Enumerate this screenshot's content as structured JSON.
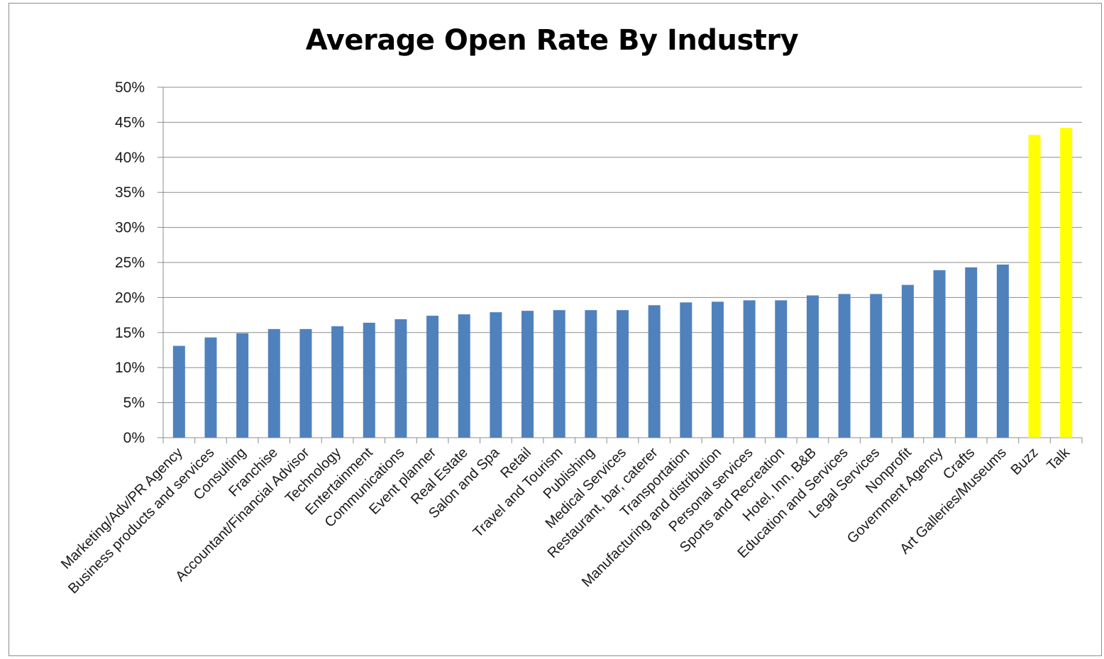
{
  "chart_data": {
    "type": "bar",
    "title": "Average Open Rate By Industry",
    "xlabel": "",
    "ylabel": "",
    "ylim": [
      0,
      50
    ],
    "y_ticks": [
      "0%",
      "5%",
      "10%",
      "15%",
      "20%",
      "25%",
      "30%",
      "35%",
      "40%",
      "45%",
      "50%"
    ],
    "grid": "horizontal",
    "categories": [
      "Marketing/Adv/PR Agency",
      "Business products and services",
      "Consulting",
      "Franchise",
      "Accountant/Financial Advisor",
      "Technology",
      "Entertainment",
      "Communications",
      "Event planner",
      "Real Estate",
      "Salon and Spa",
      "Retail",
      "Travel and Tourism",
      "Publishing",
      "Medical Services",
      "Restaurant, bar, caterer",
      "Transportation",
      "Manufacturing and distribution",
      "Personal services",
      "Sports and Recreation",
      "Hotel, Inn, B&B",
      "Education and Services",
      "Legal Services",
      "Nonprofit",
      "Government Agency",
      "Crafts",
      "Art Galleries/Museums",
      "Buzz",
      "Talk"
    ],
    "values": [
      13.1,
      14.3,
      14.9,
      15.5,
      15.5,
      15.9,
      16.4,
      16.9,
      17.4,
      17.6,
      17.9,
      18.1,
      18.2,
      18.2,
      18.2,
      18.9,
      19.3,
      19.4,
      19.6,
      19.6,
      20.3,
      20.5,
      20.5,
      21.8,
      23.9,
      24.3,
      24.7,
      43.2,
      44.2
    ],
    "colors": {
      "default": "#4f81bd",
      "highlight": "#ffff00",
      "grid": "#8c8c8c",
      "axis": "#8c8c8c"
    },
    "highlighted": [
      "Buzz",
      "Talk"
    ]
  }
}
